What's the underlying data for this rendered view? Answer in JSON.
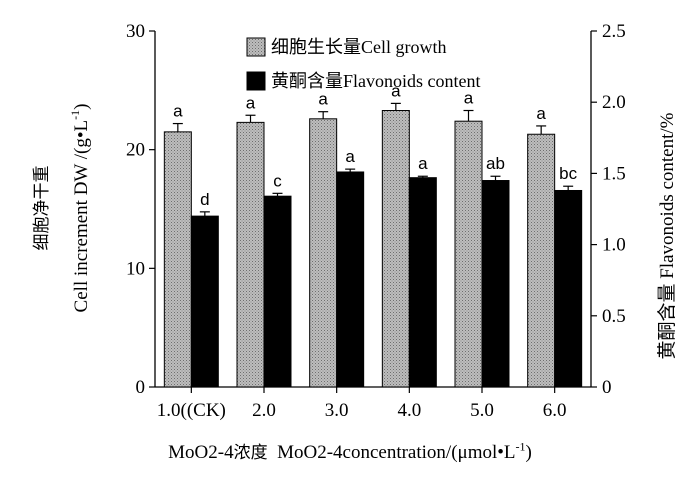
{
  "chart_data": {
    "type": "bar",
    "categories": [
      "1.0((CK)",
      "2.0",
      "3.0",
      "4.0",
      "5.0",
      "6.0"
    ],
    "series": [
      {
        "name": "细胞生长量Cell growth",
        "axis": "left",
        "pattern": "grey-crosshatch",
        "values": [
          21.5,
          22.3,
          22.6,
          23.3,
          22.4,
          21.3
        ],
        "errors": [
          0.7,
          0.6,
          0.6,
          0.6,
          0.9,
          0.7
        ],
        "letters": [
          "a",
          "a",
          "a",
          "a",
          "a",
          "a"
        ]
      },
      {
        "name": "黄酮含量Flavonoids content",
        "axis": "right",
        "color": "#000000",
        "values": [
          1.2,
          1.34,
          1.51,
          1.47,
          1.45,
          1.38
        ],
        "errors": [
          0.03,
          0.02,
          0.02,
          0.01,
          0.03,
          0.03
        ],
        "letters": [
          "d",
          "c",
          "a",
          "a",
          "ab",
          "bc"
        ]
      }
    ],
    "y_left": {
      "range": [
        0,
        30
      ],
      "ticks": [
        "0",
        "10",
        "20",
        "30"
      ],
      "label_cn": "细胞净干重",
      "label_en": "Cell increment DW /(g•L",
      "label_sup": "-1",
      "label_end": ")"
    },
    "y_right": {
      "range": [
        0,
        2.5
      ],
      "ticks": [
        "0",
        "0.5",
        "1.0",
        "1.5",
        "2.0",
        "2.5"
      ],
      "label": "黄酮含量 Flavonoids content/%"
    },
    "x_label": {
      "chem1": "MoO",
      "sub": "4",
      "sup": "2-",
      "cn": "浓度",
      "chem2": "MoO",
      "rest": "concentration/(μmol•L",
      "rest_sup": "-1",
      "rest_end": ")"
    },
    "legend": {
      "placement": "top-center",
      "items": [
        "细胞生长量Cell growth",
        "黄酮含量Flavonoids content"
      ]
    },
    "grid": false
  }
}
